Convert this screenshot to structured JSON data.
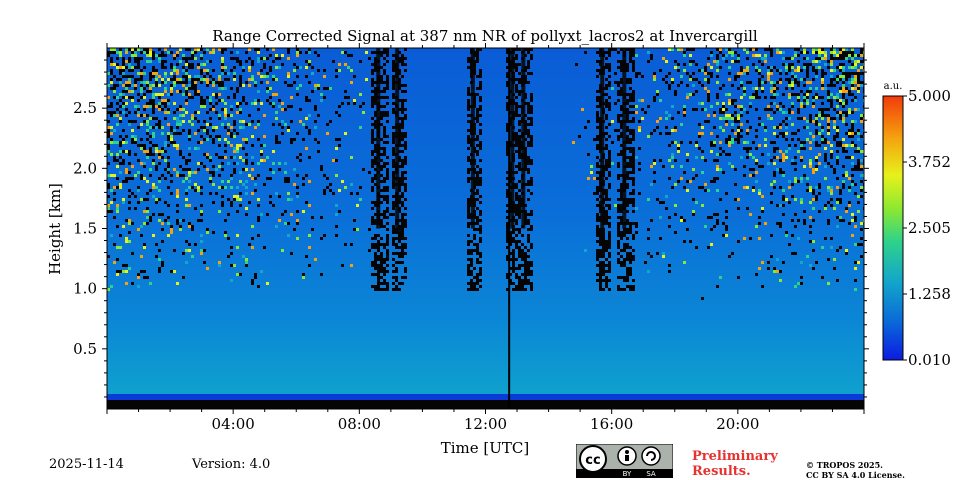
{
  "chart_data": {
    "type": "heatmap",
    "title": "Range Corrected Signal at 387 nm NR of pollyxt_lacros2 at Invercargill",
    "xlabel": "Time [UTC]",
    "ylabel": "Height [km]",
    "xlim_hours": [
      0,
      24
    ],
    "ylim_km": [
      0,
      3.0
    ],
    "x_ticks": [
      {
        "value": 4,
        "label": "04:00"
      },
      {
        "value": 8,
        "label": "08:00"
      },
      {
        "value": 12,
        "label": "12:00"
      },
      {
        "value": 16,
        "label": "16:00"
      },
      {
        "value": 20,
        "label": "20:00"
      }
    ],
    "y_ticks": [
      {
        "value": 0.5,
        "label": "0.5"
      },
      {
        "value": 1.0,
        "label": "1.0"
      },
      {
        "value": 1.5,
        "label": "1.5"
      },
      {
        "value": 2.0,
        "label": "2.0"
      },
      {
        "value": 2.5,
        "label": "2.5"
      }
    ],
    "colorbar": {
      "unit": "a.u.",
      "min": 0.01,
      "max": 5.0,
      "ticks": [
        "5.000",
        "3.752",
        "2.505",
        "1.258",
        "0.010"
      ],
      "colormap": [
        "#0b1be0",
        "#0a6cd8",
        "#13a7c9",
        "#2fd28a",
        "#8ae832",
        "#e7f11b",
        "#f4a30f",
        "#f23b0b"
      ]
    },
    "cloud_columns_hours": [
      8.6,
      9.2,
      11.6,
      12.85,
      13.2,
      15.7,
      16.4
    ],
    "vertical_line_hour": 12.75
  },
  "footer": {
    "date": "2025-11-14",
    "version": "Version: 4.0",
    "cc_label": "cc",
    "cc_by": "BY",
    "cc_sa": "SA",
    "preliminary_line1": "Preliminary",
    "preliminary_line2": "Results.",
    "copyright_line1": "© TROPOS 2025.",
    "copyright_line2": "CC BY SA 4.0 License."
  }
}
